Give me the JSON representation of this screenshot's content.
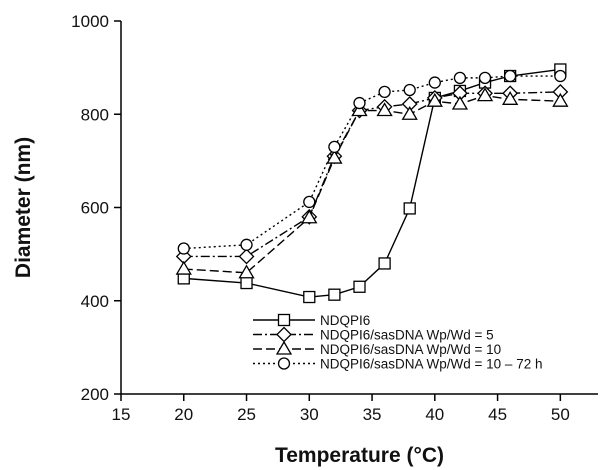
{
  "chart_data": {
    "type": "line",
    "xlabel": "Temperature (°C)",
    "ylabel": "Diameter (nm)",
    "xlim": [
      15,
      53
    ],
    "ylim": [
      200,
      1000
    ],
    "xticks": [
      15,
      20,
      25,
      30,
      35,
      40,
      45,
      50
    ],
    "yticks": [
      200,
      400,
      600,
      800,
      1000
    ],
    "grid": false,
    "legend_position": "lower-right",
    "series": [
      {
        "name": "NDQPI6",
        "marker": "square",
        "line": "solid",
        "x": [
          20,
          25,
          30,
          32,
          34,
          36,
          38,
          40,
          42,
          44,
          46,
          50
        ],
        "y": [
          448,
          438,
          408,
          413,
          430,
          480,
          598,
          835,
          850,
          868,
          882,
          896
        ]
      },
      {
        "name": "NDQPI6/sasDNA Wp/Wd = 5",
        "marker": "diamond",
        "line": "dash-dot",
        "x": [
          20,
          25,
          30,
          32,
          34,
          36,
          38,
          40,
          42,
          44,
          46,
          50
        ],
        "y": [
          495,
          495,
          580,
          710,
          808,
          816,
          822,
          835,
          845,
          845,
          845,
          848
        ]
      },
      {
        "name": "NDQPI6/sasDNA Wp/Wd = 10",
        "marker": "triangle",
        "line": "dashed",
        "x": [
          20,
          25,
          30,
          32,
          34,
          36,
          38,
          40,
          42,
          44,
          46,
          50
        ],
        "y": [
          468,
          460,
          578,
          706,
          808,
          808,
          800,
          828,
          822,
          840,
          832,
          828
        ]
      },
      {
        "name": "NDQPI6/sasDNA Wp/Wd = 10 – 72 h",
        "marker": "circle",
        "line": "dotted",
        "x": [
          20,
          25,
          30,
          32,
          34,
          36,
          38,
          40,
          42,
          44,
          46,
          50
        ],
        "y": [
          512,
          520,
          612,
          730,
          824,
          848,
          852,
          868,
          878,
          878,
          882,
          882
        ]
      }
    ]
  }
}
